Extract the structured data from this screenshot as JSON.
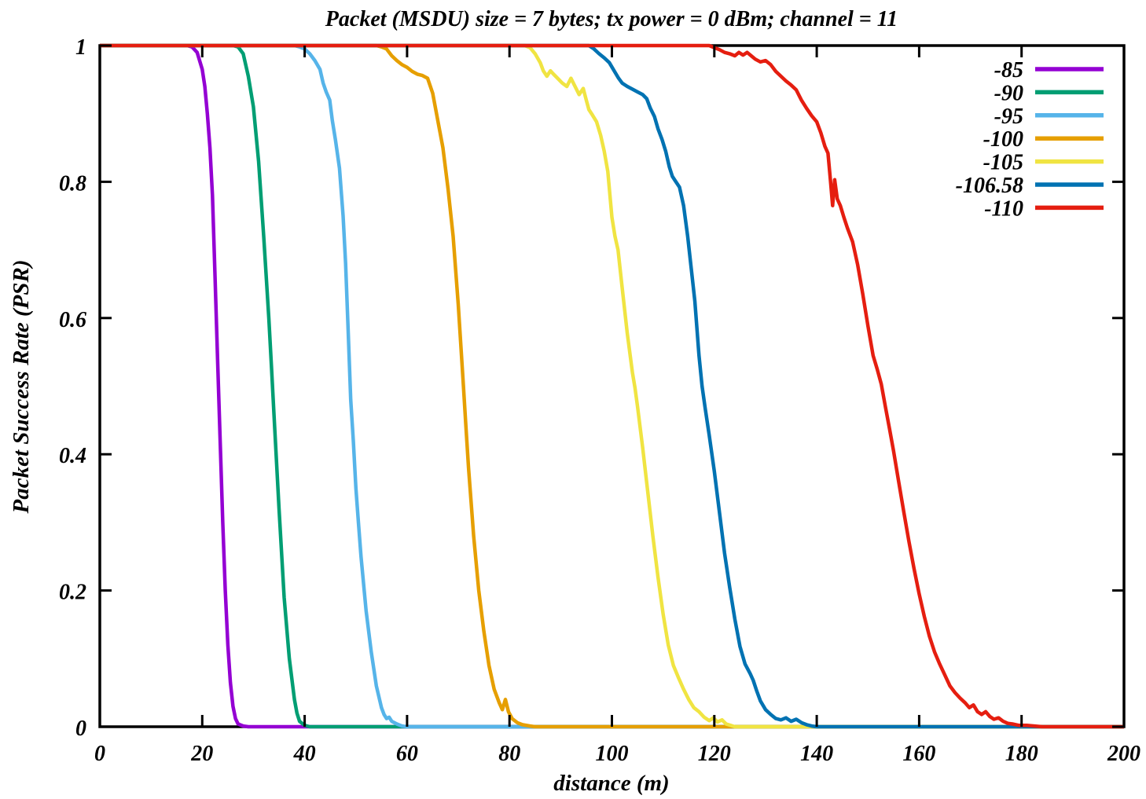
{
  "figure": {
    "background": "#ffffff",
    "axis_color": "#000000"
  },
  "chart_data": {
    "type": "line",
    "title": "Packet (MSDU) size = 7 bytes; tx power = 0 dBm; channel = 11",
    "xlabel": "distance (m)",
    "ylabel": "Packet Success Rate (PSR)",
    "xlim": [
      0,
      200
    ],
    "ylim": [
      0,
      1
    ],
    "xticks": [
      0,
      20,
      40,
      60,
      80,
      100,
      120,
      140,
      160,
      180,
      200
    ],
    "yticks": [
      0,
      0.2,
      0.4,
      0.6,
      0.8,
      1
    ],
    "grid": false,
    "legend_position": "top-right",
    "series": [
      {
        "name": "-85",
        "color": "#9400d3",
        "points": [
          [
            0,
            1
          ],
          [
            10,
            1
          ],
          [
            15,
            1
          ],
          [
            17,
            1
          ],
          [
            18,
            0.998
          ],
          [
            19,
            0.99
          ],
          [
            20,
            0.965
          ],
          [
            20.5,
            0.94
          ],
          [
            21,
            0.9
          ],
          [
            21.5,
            0.85
          ],
          [
            22,
            0.78
          ],
          [
            22.5,
            0.66
          ],
          [
            23,
            0.54
          ],
          [
            23.5,
            0.42
          ],
          [
            24,
            0.3
          ],
          [
            24.5,
            0.2
          ],
          [
            25,
            0.12
          ],
          [
            25.5,
            0.065
          ],
          [
            26,
            0.03
          ],
          [
            26.5,
            0.012
          ],
          [
            27,
            0.004
          ],
          [
            28,
            0.001
          ],
          [
            29,
            0
          ],
          [
            200,
            0
          ]
        ]
      },
      {
        "name": "-90",
        "color": "#009e73",
        "points": [
          [
            0,
            1
          ],
          [
            20,
            1
          ],
          [
            26,
            1
          ],
          [
            27,
            0.998
          ],
          [
            28,
            0.988
          ],
          [
            29,
            0.955
          ],
          [
            30,
            0.91
          ],
          [
            31,
            0.83
          ],
          [
            32,
            0.72
          ],
          [
            33,
            0.6
          ],
          [
            33.5,
            0.53
          ],
          [
            34,
            0.46
          ],
          [
            35,
            0.32
          ],
          [
            36,
            0.19
          ],
          [
            37,
            0.1
          ],
          [
            38,
            0.04
          ],
          [
            38.5,
            0.02
          ],
          [
            39,
            0.008
          ],
          [
            40,
            0.002
          ],
          [
            41,
            0
          ],
          [
            200,
            0
          ]
        ]
      },
      {
        "name": "-95",
        "color": "#56b4e9",
        "points": [
          [
            0,
            1
          ],
          [
            30,
            1
          ],
          [
            38,
            1
          ],
          [
            39,
            0.998
          ],
          [
            40,
            0.995
          ],
          [
            41,
            0.988
          ],
          [
            42,
            0.978
          ],
          [
            43,
            0.965
          ],
          [
            43.6,
            0.945
          ],
          [
            44.2,
            0.932
          ],
          [
            44.9,
            0.92
          ],
          [
            45.4,
            0.89
          ],
          [
            46,
            0.862
          ],
          [
            46.8,
            0.82
          ],
          [
            47.5,
            0.75
          ],
          [
            48,
            0.68
          ],
          [
            48.5,
            0.58
          ],
          [
            49,
            0.48
          ],
          [
            49.5,
            0.42
          ],
          [
            50,
            0.35
          ],
          [
            50.5,
            0.3
          ],
          [
            51,
            0.25
          ],
          [
            52,
            0.17
          ],
          [
            53,
            0.11
          ],
          [
            54,
            0.06
          ],
          [
            55,
            0.028
          ],
          [
            55.5,
            0.018
          ],
          [
            56,
            0.012
          ],
          [
            56.5,
            0.014
          ],
          [
            57,
            0.008
          ],
          [
            58,
            0.004
          ],
          [
            59,
            0.001
          ],
          [
            60,
            0
          ],
          [
            200,
            0
          ]
        ]
      },
      {
        "name": "-100",
        "color": "#e69f00",
        "points": [
          [
            0,
            1
          ],
          [
            40,
            1
          ],
          [
            54,
            1
          ],
          [
            55,
            0.998
          ],
          [
            56,
            0.995
          ],
          [
            56.5,
            0.99
          ],
          [
            57,
            0.985
          ],
          [
            58,
            0.978
          ],
          [
            59,
            0.972
          ],
          [
            60,
            0.968
          ],
          [
            61,
            0.962
          ],
          [
            62,
            0.958
          ],
          [
            63,
            0.956
          ],
          [
            64,
            0.952
          ],
          [
            65,
            0.93
          ],
          [
            66,
            0.89
          ],
          [
            67,
            0.85
          ],
          [
            68,
            0.79
          ],
          [
            69,
            0.72
          ],
          [
            70,
            0.62
          ],
          [
            70.5,
            0.56
          ],
          [
            71,
            0.5
          ],
          [
            71.5,
            0.44
          ],
          [
            72,
            0.38
          ],
          [
            73,
            0.28
          ],
          [
            74,
            0.2
          ],
          [
            75,
            0.14
          ],
          [
            76,
            0.09
          ],
          [
            77,
            0.055
          ],
          [
            78,
            0.035
          ],
          [
            78.6,
            0.025
          ],
          [
            79.2,
            0.04
          ],
          [
            79.8,
            0.022
          ],
          [
            80.5,
            0.012
          ],
          [
            81.5,
            0.006
          ],
          [
            82.5,
            0.003
          ],
          [
            84,
            0.001
          ],
          [
            85,
            0
          ],
          [
            200,
            0
          ]
        ]
      },
      {
        "name": "-105",
        "color": "#f0e442",
        "points": [
          [
            0,
            1
          ],
          [
            70,
            1
          ],
          [
            83,
            1
          ],
          [
            84,
            0.997
          ],
          [
            85,
            0.988
          ],
          [
            86,
            0.975
          ],
          [
            86.6,
            0.963
          ],
          [
            87.3,
            0.955
          ],
          [
            88,
            0.963
          ],
          [
            88.6,
            0.958
          ],
          [
            89.4,
            0.952
          ],
          [
            90.3,
            0.945
          ],
          [
            91.2,
            0.94
          ],
          [
            92,
            0.952
          ],
          [
            92.8,
            0.94
          ],
          [
            93.6,
            0.928
          ],
          [
            94.4,
            0.937
          ],
          [
            95,
            0.92
          ],
          [
            95.5,
            0.906
          ],
          [
            96.2,
            0.898
          ],
          [
            97,
            0.888
          ],
          [
            97.8,
            0.868
          ],
          [
            98.5,
            0.845
          ],
          [
            99.2,
            0.815
          ],
          [
            100,
            0.748
          ],
          [
            100.6,
            0.72
          ],
          [
            101.2,
            0.7
          ],
          [
            102,
            0.645
          ],
          [
            103,
            0.578
          ],
          [
            104,
            0.52
          ],
          [
            104.5,
            0.498
          ],
          [
            105,
            0.47
          ],
          [
            106,
            0.41
          ],
          [
            107,
            0.345
          ],
          [
            108,
            0.28
          ],
          [
            109,
            0.22
          ],
          [
            110,
            0.165
          ],
          [
            111,
            0.12
          ],
          [
            112,
            0.09
          ],
          [
            113,
            0.072
          ],
          [
            114,
            0.055
          ],
          [
            115,
            0.04
          ],
          [
            116,
            0.028
          ],
          [
            117,
            0.022
          ],
          [
            118,
            0.014
          ],
          [
            119,
            0.009
          ],
          [
            119.8,
            0.013
          ],
          [
            120.6,
            0.007
          ],
          [
            121.5,
            0.01
          ],
          [
            122.3,
            0.004
          ],
          [
            123.2,
            0.002
          ],
          [
            124,
            0
          ],
          [
            200,
            0
          ]
        ]
      },
      {
        "name": "-106.58",
        "color": "#0072b2",
        "points": [
          [
            0,
            1
          ],
          [
            80,
            1
          ],
          [
            95.5,
            1
          ],
          [
            96.5,
            0.995
          ],
          [
            97.5,
            0.988
          ],
          [
            98.5,
            0.982
          ],
          [
            99.5,
            0.975
          ],
          [
            100.5,
            0.962
          ],
          [
            101.3,
            0.952
          ],
          [
            102,
            0.945
          ],
          [
            103,
            0.94
          ],
          [
            104,
            0.936
          ],
          [
            105,
            0.932
          ],
          [
            106,
            0.928
          ],
          [
            106.8,
            0.922
          ],
          [
            107.5,
            0.908
          ],
          [
            108.3,
            0.896
          ],
          [
            109,
            0.878
          ],
          [
            109.8,
            0.862
          ],
          [
            110.5,
            0.845
          ],
          [
            111.2,
            0.822
          ],
          [
            111.8,
            0.808
          ],
          [
            112.5,
            0.8
          ],
          [
            113.2,
            0.792
          ],
          [
            114,
            0.765
          ],
          [
            114.8,
            0.72
          ],
          [
            115.5,
            0.672
          ],
          [
            116.2,
            0.625
          ],
          [
            117,
            0.545
          ],
          [
            117.6,
            0.5
          ],
          [
            118.2,
            0.468
          ],
          [
            119,
            0.428
          ],
          [
            120,
            0.375
          ],
          [
            121,
            0.315
          ],
          [
            122,
            0.255
          ],
          [
            123,
            0.205
          ],
          [
            124,
            0.158
          ],
          [
            125,
            0.118
          ],
          [
            126,
            0.092
          ],
          [
            127,
            0.078
          ],
          [
            127.6,
            0.068
          ],
          [
            128.3,
            0.052
          ],
          [
            129,
            0.038
          ],
          [
            130,
            0.025
          ],
          [
            131,
            0.018
          ],
          [
            132,
            0.012
          ],
          [
            133,
            0.01
          ],
          [
            134,
            0.013
          ],
          [
            135,
            0.008
          ],
          [
            136,
            0.011
          ],
          [
            137,
            0.006
          ],
          [
            138,
            0.003
          ],
          [
            139,
            0.001
          ],
          [
            140,
            0
          ],
          [
            200,
            0
          ]
        ]
      },
      {
        "name": "-110",
        "color": "#e51e10",
        "points": [
          [
            0,
            1
          ],
          [
            100,
            1
          ],
          [
            119,
            1
          ],
          [
            120,
            0.997
          ],
          [
            121,
            0.994
          ],
          [
            122,
            0.99
          ],
          [
            123,
            0.988
          ],
          [
            124,
            0.985
          ],
          [
            124.8,
            0.99
          ],
          [
            125.6,
            0.986
          ],
          [
            126.4,
            0.99
          ],
          [
            127.2,
            0.985
          ],
          [
            128,
            0.98
          ],
          [
            129,
            0.976
          ],
          [
            130,
            0.978
          ],
          [
            131,
            0.972
          ],
          [
            132,
            0.962
          ],
          [
            133,
            0.955
          ],
          [
            134,
            0.948
          ],
          [
            135,
            0.942
          ],
          [
            136,
            0.935
          ],
          [
            137,
            0.92
          ],
          [
            138,
            0.908
          ],
          [
            139,
            0.897
          ],
          [
            140,
            0.888
          ],
          [
            140.8,
            0.872
          ],
          [
            141.6,
            0.852
          ],
          [
            142.2,
            0.842
          ],
          [
            142.7,
            0.8
          ],
          [
            143.1,
            0.765
          ],
          [
            143.5,
            0.803
          ],
          [
            144,
            0.775
          ],
          [
            144.6,
            0.765
          ],
          [
            145.3,
            0.748
          ],
          [
            146,
            0.732
          ],
          [
            147,
            0.712
          ],
          [
            148,
            0.678
          ],
          [
            149,
            0.635
          ],
          [
            150,
            0.588
          ],
          [
            151,
            0.545
          ],
          [
            151.8,
            0.525
          ],
          [
            152.6,
            0.503
          ],
          [
            153.4,
            0.47
          ],
          [
            154.2,
            0.438
          ],
          [
            155,
            0.405
          ],
          [
            156,
            0.36
          ],
          [
            157,
            0.315
          ],
          [
            158,
            0.272
          ],
          [
            159,
            0.232
          ],
          [
            160,
            0.195
          ],
          [
            161,
            0.162
          ],
          [
            162,
            0.133
          ],
          [
            163,
            0.11
          ],
          [
            164,
            0.092
          ],
          [
            165,
            0.076
          ],
          [
            166,
            0.06
          ],
          [
            167,
            0.05
          ],
          [
            168,
            0.042
          ],
          [
            169,
            0.035
          ],
          [
            169.8,
            0.028
          ],
          [
            170.6,
            0.032
          ],
          [
            171.4,
            0.022
          ],
          [
            172.2,
            0.018
          ],
          [
            173,
            0.022
          ],
          [
            173.8,
            0.015
          ],
          [
            174.6,
            0.011
          ],
          [
            175.5,
            0.013
          ],
          [
            176.4,
            0.008
          ],
          [
            177.3,
            0.005
          ],
          [
            178.2,
            0.004
          ],
          [
            179.5,
            0.002
          ],
          [
            181,
            0.002
          ],
          [
            182.5,
            0.001
          ],
          [
            184,
            0
          ],
          [
            200,
            0
          ]
        ]
      }
    ]
  }
}
